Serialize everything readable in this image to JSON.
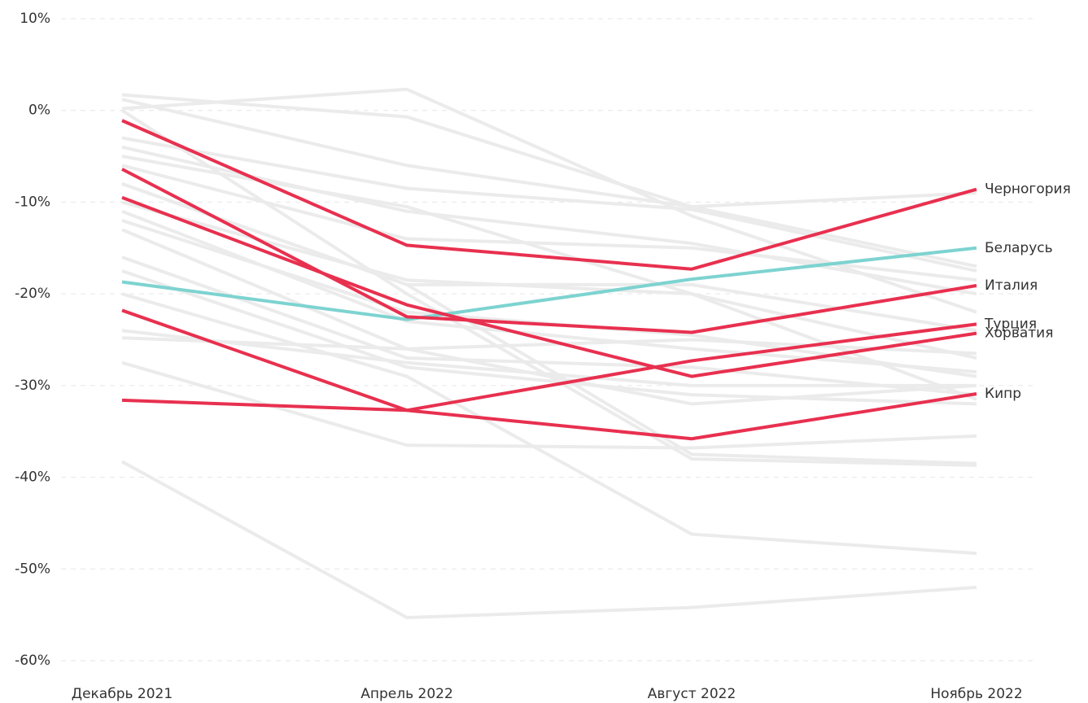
{
  "chart_data": {
    "type": "line",
    "categories": [
      "Декабрь 2021",
      "Апрель 2022",
      "Август 2022",
      "Ноябрь 2022"
    ],
    "ylim": [
      -60,
      10
    ],
    "yticks": [
      {
        "value": -60,
        "label": "-60%"
      },
      {
        "value": -50,
        "label": "-50%"
      },
      {
        "value": -40,
        "label": "-40%"
      },
      {
        "value": -30,
        "label": "-30%"
      },
      {
        "value": -20,
        "label": "-20%"
      },
      {
        "value": -10,
        "label": "-10%"
      },
      {
        "value": 0,
        "label": "0%"
      },
      {
        "value": 10,
        "label": "10%"
      }
    ],
    "grid": true,
    "series": [
      {
        "color": "#ebebeb",
        "values": [
          1.7,
          -0.7,
          -10.5,
          -17
        ]
      },
      {
        "color": "#ebebeb",
        "values": [
          0.2,
          2.3,
          -11.5,
          -22
        ]
      },
      {
        "color": "#ebebeb",
        "values": [
          1.2,
          -6,
          -10.5,
          -9
        ]
      },
      {
        "color": "#ebebeb",
        "values": [
          -3,
          -8.5,
          -10.8,
          -17.5
        ]
      },
      {
        "color": "#ebebeb",
        "values": [
          -4,
          -11,
          -14.5,
          -20
        ]
      },
      {
        "color": "#ebebeb",
        "values": [
          -6,
          -14,
          -15,
          -18.5
        ]
      },
      {
        "color": "#ebebeb",
        "values": [
          -8,
          -19,
          -19,
          -24
        ]
      },
      {
        "color": "#ebebeb",
        "values": [
          -10,
          -18.5,
          -20,
          -27
        ]
      },
      {
        "color": "#ebebeb",
        "values": [
          -11,
          -23,
          -26,
          -28.5
        ]
      },
      {
        "color": "#ebebeb",
        "values": [
          -13,
          -26,
          -32,
          -30
        ]
      },
      {
        "color": "#ebebeb",
        "values": [
          -16,
          -27,
          -28,
          -31
        ]
      },
      {
        "color": "#ebebeb",
        "values": [
          -17.5,
          -28,
          -31,
          -32
        ]
      },
      {
        "color": "#ebebeb",
        "values": [
          -24,
          -27.5,
          -30,
          -30
        ]
      },
      {
        "color": "#ebebeb",
        "values": [
          -24.8,
          -26,
          -25,
          -26.5
        ]
      },
      {
        "color": "#ebebeb",
        "values": [
          -27.5,
          -36.5,
          -36.8,
          -35.5
        ]
      },
      {
        "color": "#ebebeb",
        "values": [
          -38.3,
          -55.3,
          -54.2,
          -52
        ]
      },
      {
        "color": "#ebebeb",
        "values": [
          -20,
          -29,
          -46.2,
          -48.3
        ]
      },
      {
        "color": "#ebebeb",
        "values": [
          -8,
          -19,
          -37.5,
          -38.5
        ]
      },
      {
        "color": "#ebebeb",
        "values": [
          -12,
          -22,
          -24.5,
          -29
        ]
      },
      {
        "color": "#ebebeb",
        "values": [
          -5,
          -10.5,
          -20,
          -31.5
        ]
      },
      {
        "color": "#ebebeb",
        "values": [
          0,
          -20,
          -38,
          -38.7
        ]
      },
      {
        "name": "Беларусь",
        "color": "#7dd3d0",
        "values": [
          -18.7,
          -22.8,
          -18.4,
          -15.0
        ]
      },
      {
        "name": "Черногория",
        "color": "#e8304f",
        "values": [
          -1.1,
          -14.7,
          -17.3,
          -8.6
        ]
      },
      {
        "name": "Италия",
        "color": "#e8304f",
        "values": [
          -6.4,
          -22.5,
          -24.2,
          -19.1
        ]
      },
      {
        "name": "Хорватия",
        "color": "#e8304f",
        "values": [
          -9.5,
          -21.2,
          -29.0,
          -24.3
        ]
      },
      {
        "name": "Турция",
        "color": "#e8304f",
        "values": [
          -21.8,
          -32.7,
          -27.3,
          -23.3
        ]
      },
      {
        "name": "Кипр",
        "color": "#e8304f",
        "values": [
          -31.6,
          -32.7,
          -35.8,
          -30.9
        ]
      }
    ]
  }
}
